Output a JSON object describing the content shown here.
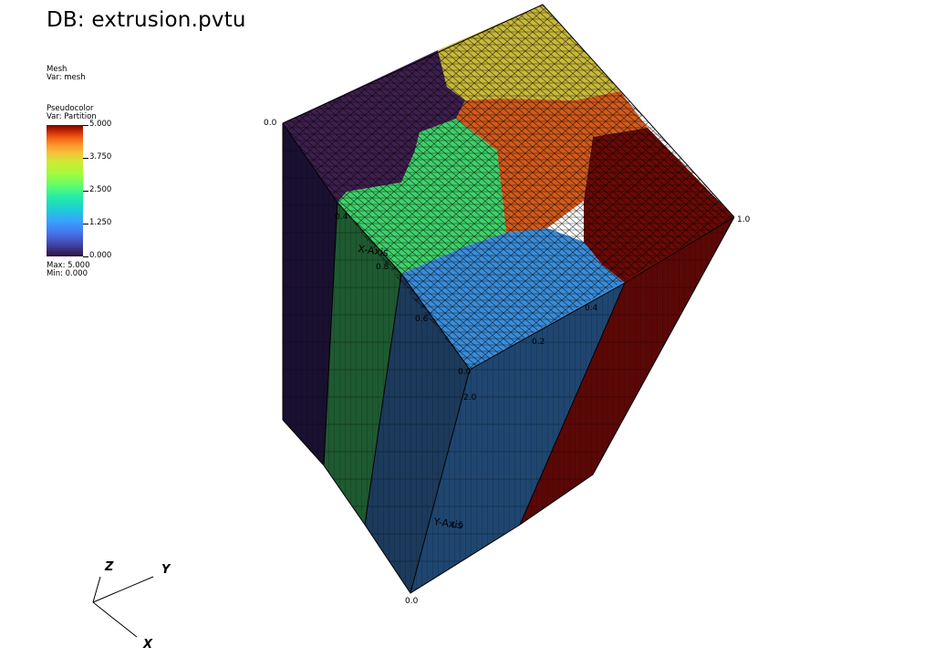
{
  "title": "DB: extrusion.pvtu",
  "mesh_legend": {
    "line1": "Mesh",
    "line2": "Var: mesh"
  },
  "pseudocolor_legend": {
    "line1": "Pseudocolor",
    "line2": "Var: Partition",
    "ticks": [
      "5.000",
      "3.750",
      "2.500",
      "1.250",
      "0.000"
    ],
    "max": "Max:  5.000",
    "min": "Min:  0.000"
  },
  "partition_colors": {
    "p0": "#3d1f4d",
    "p1": "#2a8a45",
    "p2": "#3a8cd8",
    "p3": "#c8b83a",
    "p4": "#d25a1c",
    "p5": "#6a0a06"
  },
  "axis_labels": {
    "corner_left": "0.0",
    "corner_right": "1.0",
    "corner_bottom": "0.0",
    "x_axis_title": "X-Axis",
    "y_axis_title": "Y-Axis",
    "x_ticks": [
      "0.4",
      "0.6",
      "0.8"
    ],
    "y_ticks": [
      "0.4",
      "0.2",
      "0.0"
    ],
    "mid_ticks": [
      "2.0",
      "1.5"
    ]
  },
  "triad": {
    "z": "Z",
    "y": "Y",
    "x": "X"
  }
}
